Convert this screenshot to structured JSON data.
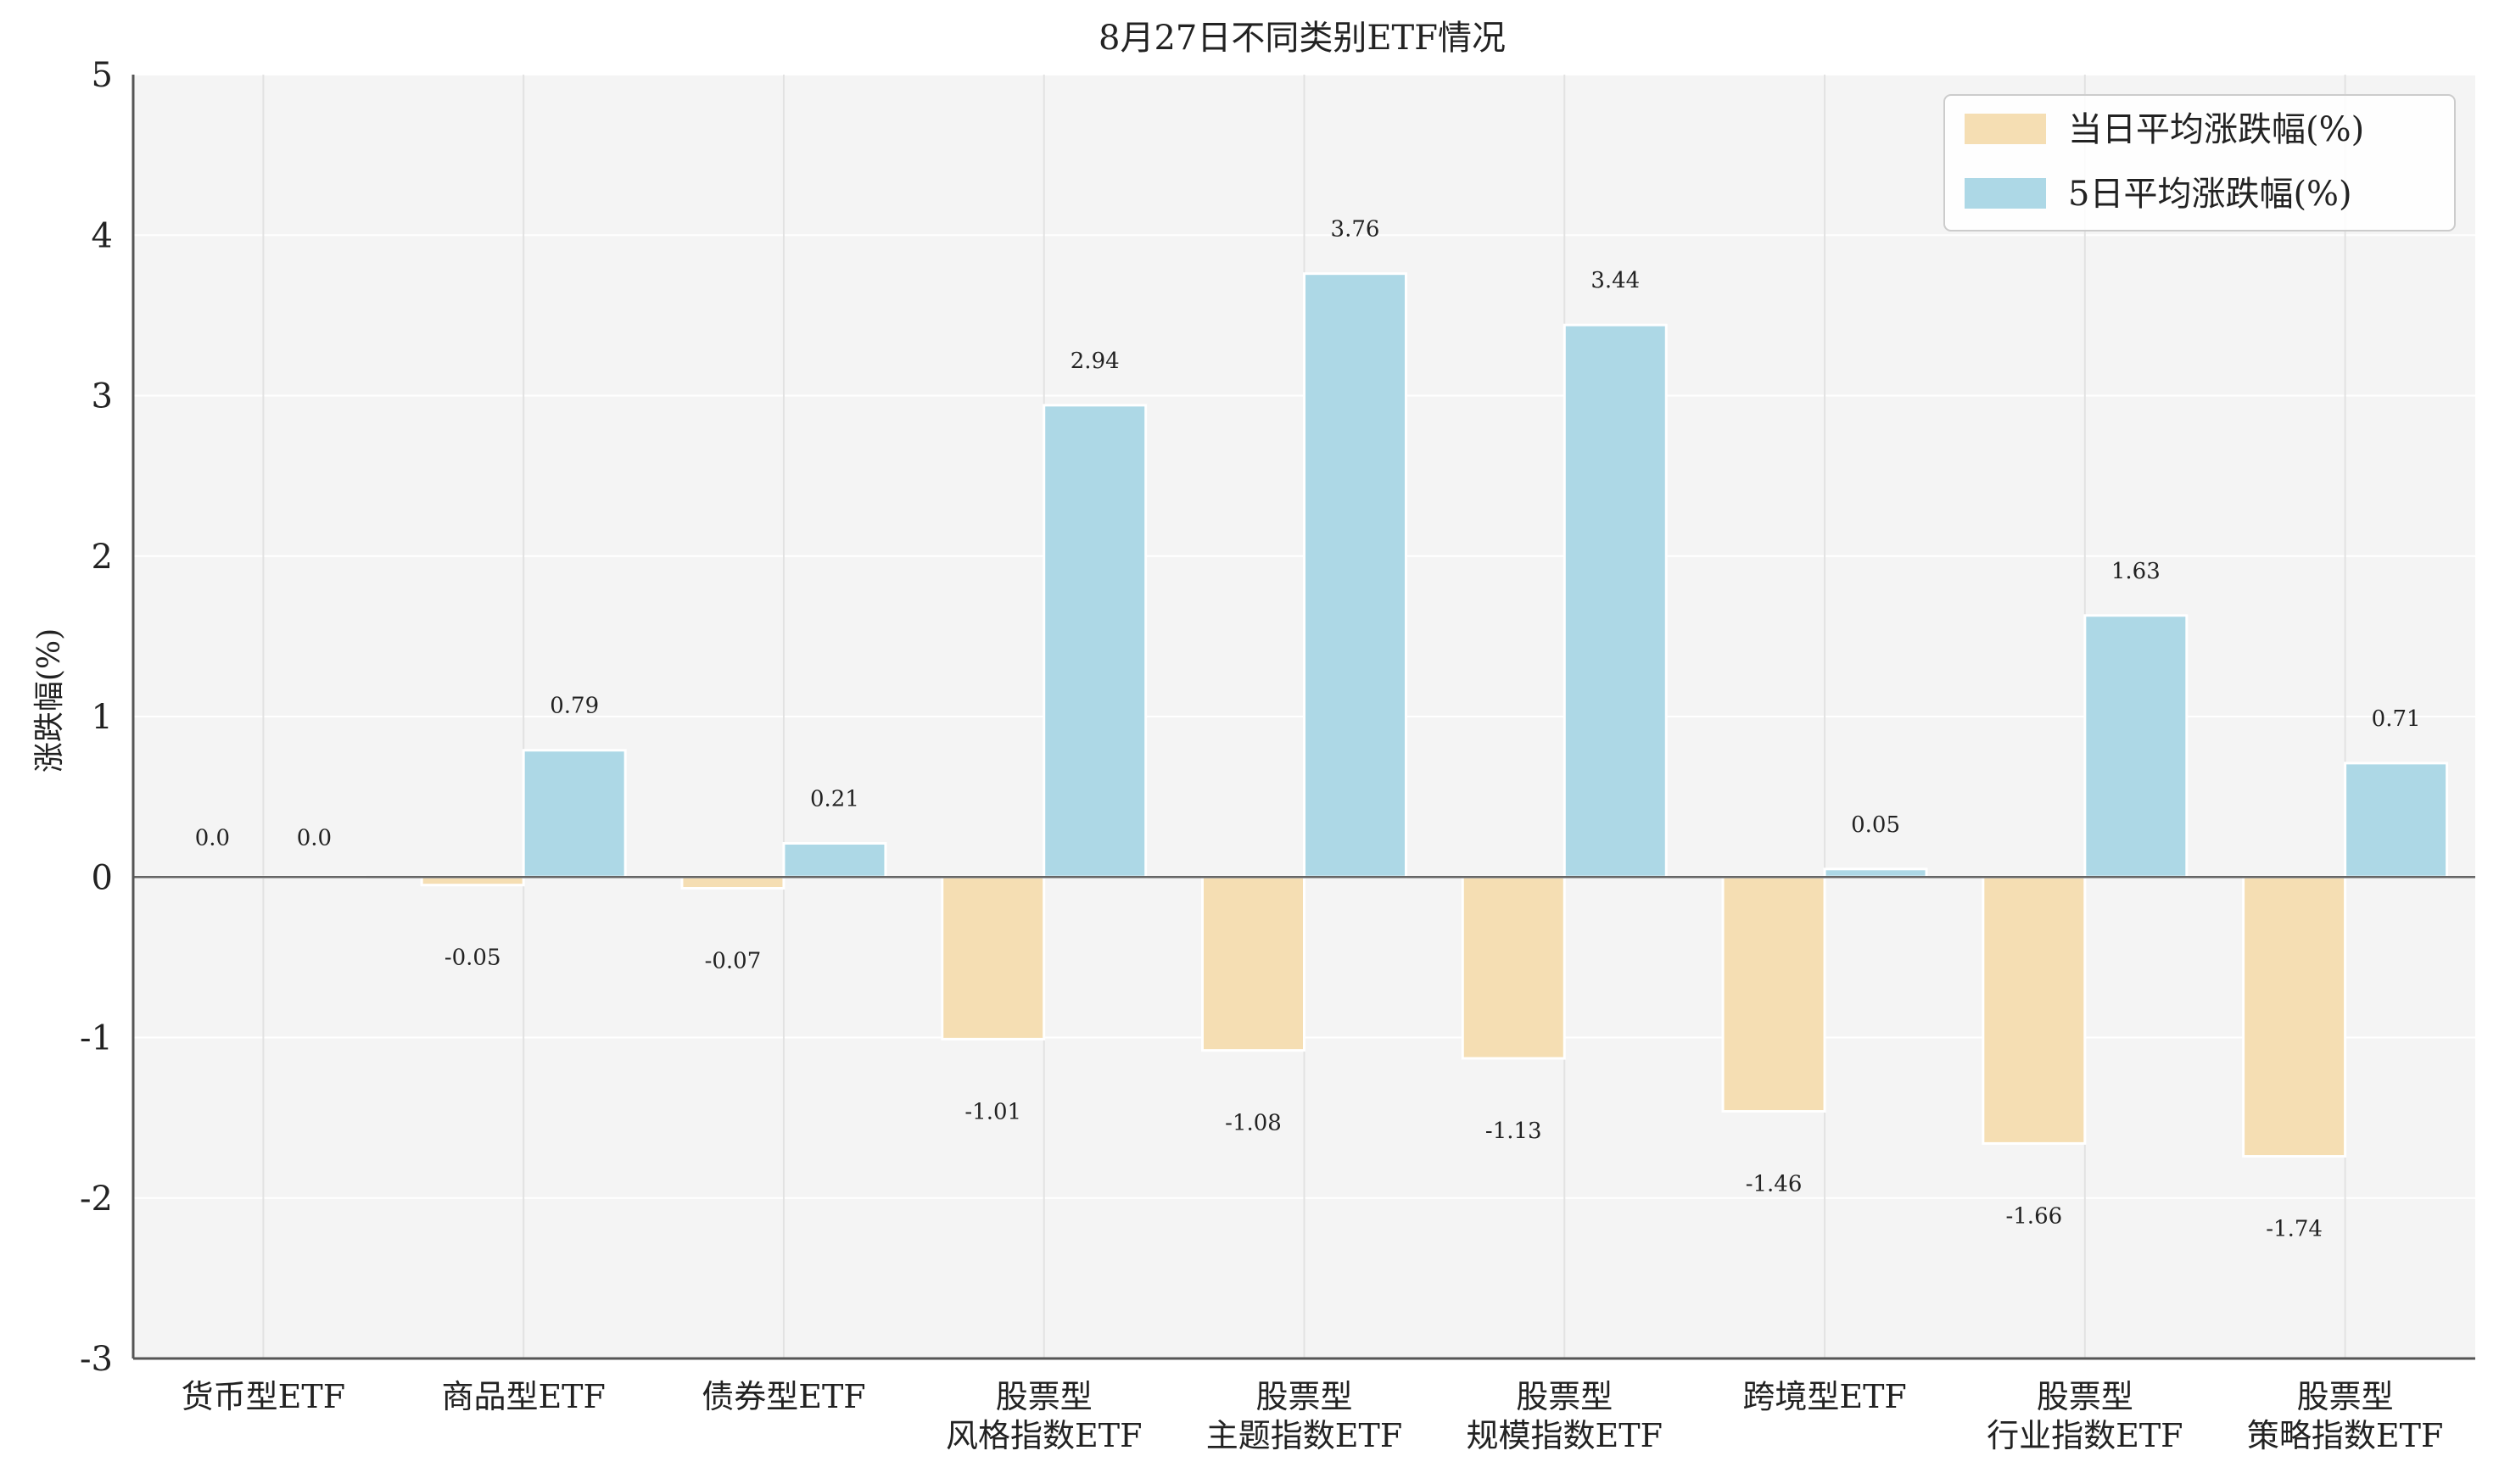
{
  "chart_data": {
    "type": "bar",
    "title": "8月27日不同类别ETF情况",
    "xlabel": "",
    "ylabel": "涨跌幅(%)",
    "ylim": [
      -3,
      5
    ],
    "yticks": [
      -3,
      -2,
      -1,
      0,
      1,
      2,
      3,
      4,
      5
    ],
    "grid": true,
    "legend_position": "top-right",
    "categories": [
      [
        "货币型ETF"
      ],
      [
        "商品型ETF"
      ],
      [
        "债券型ETF"
      ],
      [
        "股票型",
        "风格指数ETF"
      ],
      [
        "股票型",
        "主题指数ETF"
      ],
      [
        "股票型",
        "规模指数ETF"
      ],
      [
        "跨境型ETF"
      ],
      [
        "股票型",
        "行业指数ETF"
      ],
      [
        "股票型",
        "策略指数ETF"
      ]
    ],
    "series": [
      {
        "name": "当日平均涨跌幅(%)",
        "color": "#f5deb3",
        "values": [
          0.0,
          -0.05,
          -0.07,
          -1.01,
          -1.08,
          -1.13,
          -1.46,
          -1.66,
          -1.74
        ],
        "labels": [
          "0.0",
          "-0.05",
          "-0.07",
          "-1.01",
          "-1.08",
          "-1.13",
          "-1.46",
          "-1.66",
          "-1.74"
        ]
      },
      {
        "name": "5日平均涨跌幅(%)",
        "color": "#add8e6",
        "values": [
          0.0,
          0.79,
          0.21,
          2.94,
          3.76,
          3.44,
          0.05,
          1.63,
          0.71
        ],
        "labels": [
          "0.0",
          "0.79",
          "0.21",
          "2.94",
          "3.76",
          "3.44",
          "0.05",
          "1.63",
          "0.71"
        ]
      }
    ],
    "colors": {
      "plot_background": "#f4f4f4",
      "grid": "#ffffff",
      "axis": "#555555",
      "zero_line": "#666666"
    }
  }
}
